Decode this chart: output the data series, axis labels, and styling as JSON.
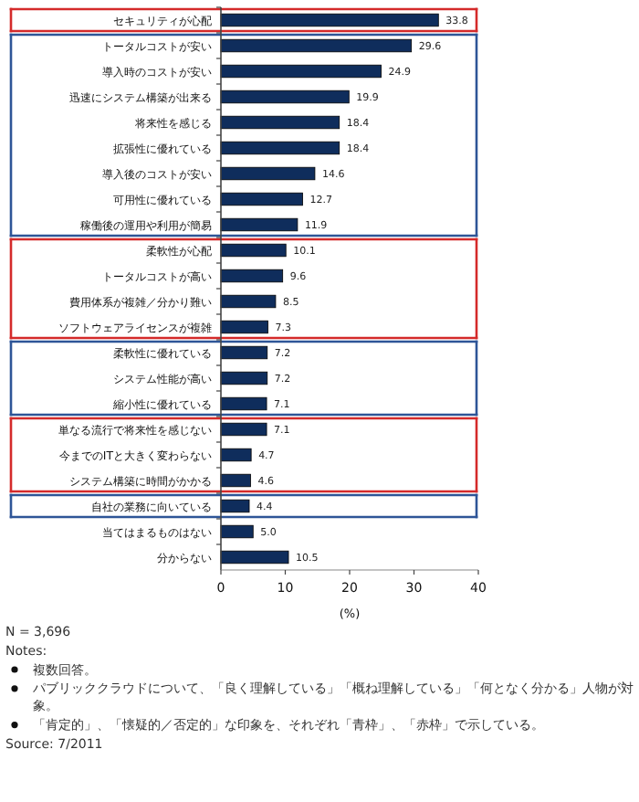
{
  "chart_data": {
    "type": "bar",
    "orientation": "horizontal",
    "xlabel": "(%)",
    "categories": [
      "セキュリティが心配",
      "トータルコストが安い",
      "導入時のコストが安い",
      "迅速にシステム構築が出来る",
      "将来性を感じる",
      "拡張性に優れている",
      "導入後のコストが安い",
      "可用性に優れている",
      "稼働後の運用や利用が簡易",
      "柔軟性が心配",
      "トータルコストが高い",
      "費用体系が複雑／分かり難い",
      "ソフトウェアライセンスが複雑",
      "柔軟性に優れている",
      "システム性能が高い",
      "縮小性に優れている",
      "単なる流行で将来性を感じない",
      "今までのITと大きく変わらない",
      "システム構築に時間がかかる",
      "自社の業務に向いている",
      "当てはまるものはない",
      "分からない"
    ],
    "values": [
      33.8,
      29.6,
      24.9,
      19.9,
      18.4,
      18.4,
      14.6,
      12.7,
      11.9,
      10.1,
      9.6,
      8.5,
      7.3,
      7.2,
      7.2,
      7.1,
      7.1,
      4.7,
      4.6,
      4.4,
      5.0,
      10.5
    ],
    "value_labels": [
      "33.8",
      "29.6",
      "24.9",
      "19.9",
      "18.4",
      "18.4",
      "14.6",
      "12.7",
      "11.9",
      "10.1",
      "9.6",
      "8.5",
      "7.3",
      "7.2",
      "7.2",
      "7.1",
      "7.1",
      "4.7",
      "4.6",
      "4.4",
      "5.0",
      "10.5"
    ],
    "color": "#0f2d5c",
    "xlim": [
      0,
      40
    ],
    "xticks": [
      0,
      10,
      20,
      30,
      40
    ],
    "annotations": [
      "N = 3,696",
      "Notes:",
      "複数回答。",
      "パブリッククラウドについて、「良く理解している」「概ね理解している」「何となく分かる」人物が対象。",
      "「肯定的」、「懐疑的／否定的」な印象を、それぞれ「青枠」、「赤枠」で示している。",
      "Source: 7/2011"
    ]
  }
}
